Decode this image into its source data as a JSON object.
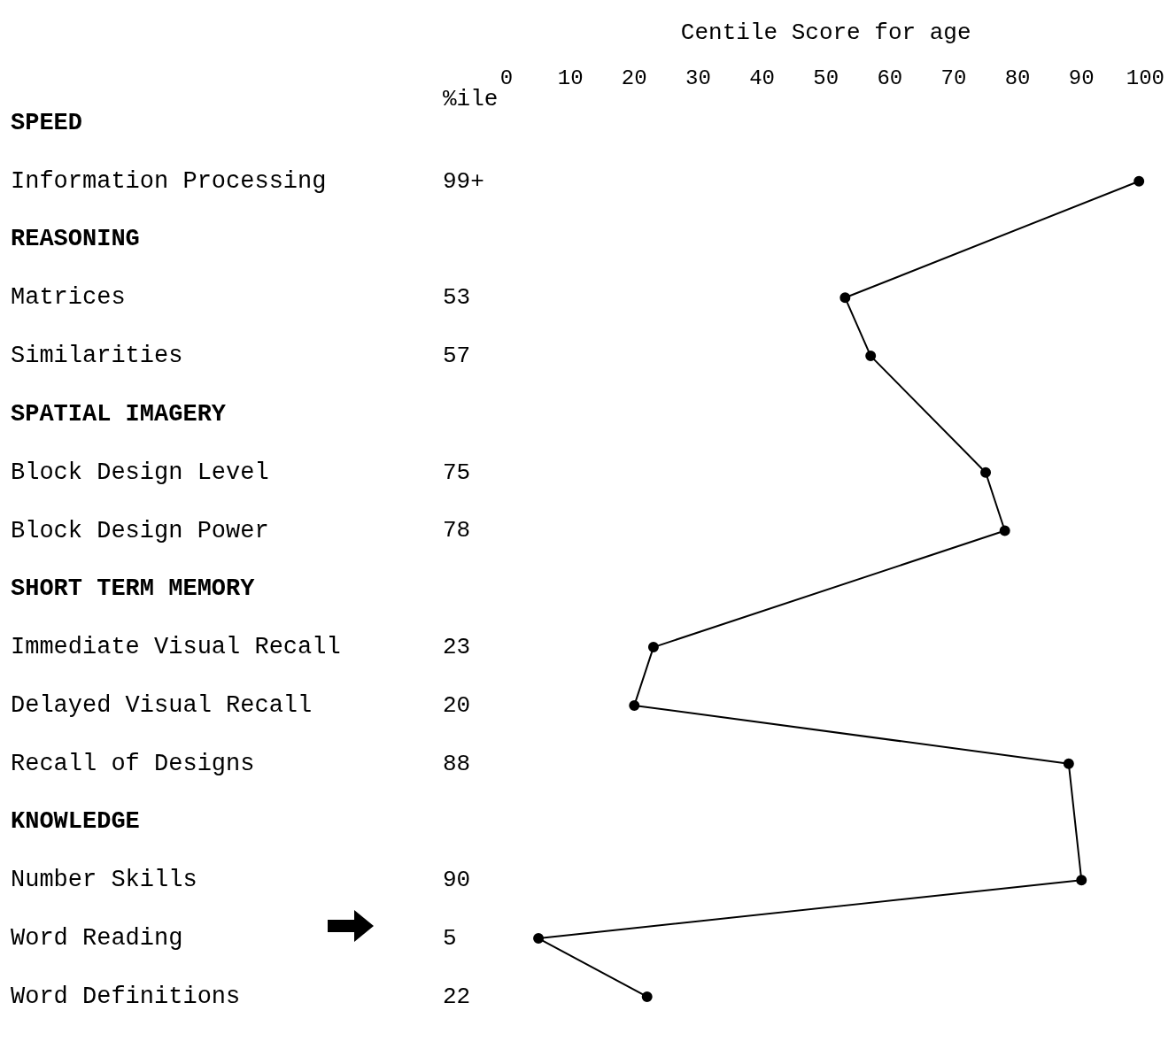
{
  "chart_data": {
    "type": "line",
    "orientation": "horizontal",
    "xlabel": "Centile Score for age",
    "annotations": [
      "%ile"
    ],
    "categories": [
      "SPEED",
      "Information Processing",
      "REASONING",
      "Matrices",
      "Similarities",
      "SPATIAL IMAGERY",
      "Block Design Level",
      "Block Design Power",
      "SHORT TERM MEMORY",
      "Immediate Visual Recall",
      "Delayed Visual Recall",
      "Recall of Designs",
      "KNOWLEDGE",
      "Number Skills",
      "Word Reading",
      "Word Definitions"
    ],
    "series": [
      {
        "color": "#000000",
        "values": [
          null,
          99,
          null,
          53,
          57,
          null,
          75,
          78,
          null,
          23,
          20,
          88,
          null,
          90,
          5,
          22
        ]
      }
    ],
    "value_labels": [
      null,
      "99+",
      null,
      "53",
      "57",
      null,
      "75",
      "78",
      null,
      "23",
      "20",
      "88",
      null,
      "90",
      "5",
      "22"
    ],
    "xlim": [
      0,
      100
    ],
    "xticks": [
      0,
      10,
      20,
      30,
      40,
      50,
      60,
      70,
      80,
      90,
      100
    ],
    "grid": false,
    "legend": false,
    "marker": "circle",
    "line_style": "solid"
  }
}
